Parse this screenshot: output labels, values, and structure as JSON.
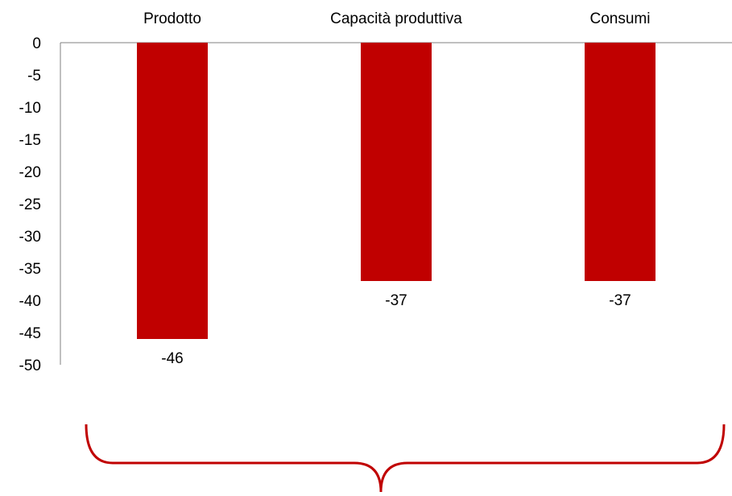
{
  "chart_data": {
    "type": "bar",
    "categories": [
      "Prodotto",
      "Capacità produttiva",
      "Consumi"
    ],
    "values": [
      -46,
      -37,
      -37
    ],
    "data_labels": [
      "-46",
      "-37",
      "-37"
    ],
    "ylim": [
      -50,
      0
    ],
    "yticks": [
      0,
      -5,
      -10,
      -15,
      -20,
      -25,
      -30,
      -35,
      -40,
      -45,
      -50
    ],
    "ytick_labels": [
      "0",
      "-5",
      "-10",
      "-15",
      "-20",
      "-25",
      "-30",
      "-35",
      "-40",
      "-45",
      "-50"
    ],
    "category_label_position": "top",
    "grid": false,
    "legend": false,
    "bar_color": "#c00000",
    "brace_color": "#c00000"
  }
}
